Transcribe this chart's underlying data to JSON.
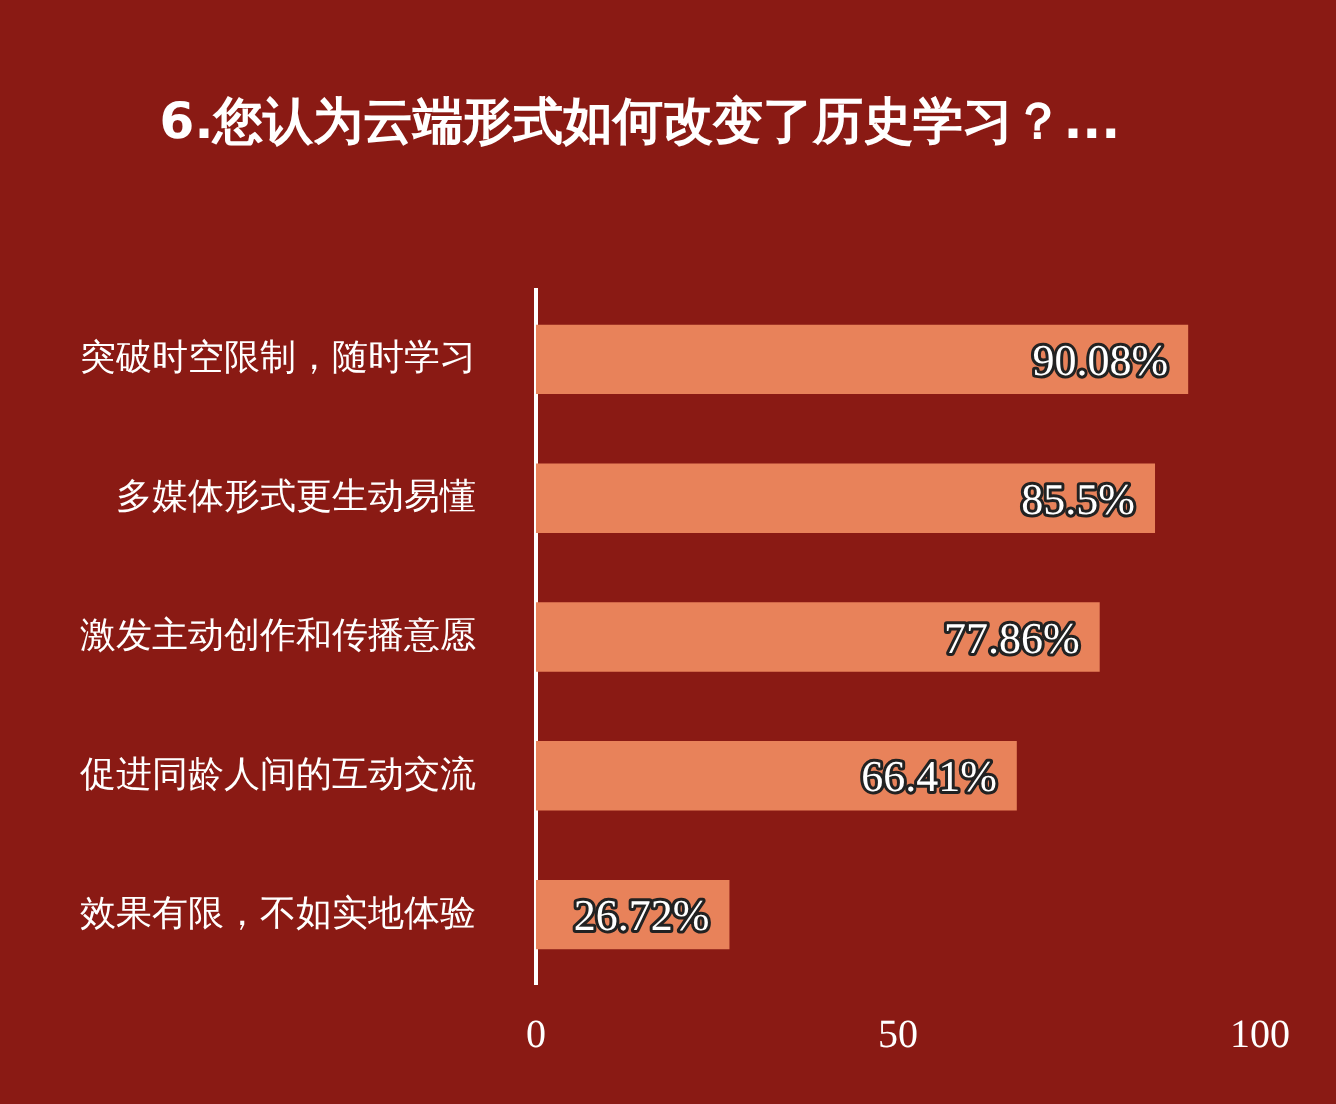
{
  "chart_data": {
    "type": "bar",
    "orientation": "horizontal",
    "title": "6.您认为云端形式如何改变了历史学习？...",
    "categories": [
      "突破时空限制，随时学习",
      "多媒体形式更生动易懂",
      "激发主动创作和传播意愿",
      "促进同龄人间的互动交流",
      "效果有限，不如实地体验"
    ],
    "series": [
      {
        "color": "#e8825a",
        "values": [
          90.08,
          85.5,
          77.86,
          66.41,
          26.72
        ]
      }
    ],
    "value_labels": [
      "90.08%",
      "85.5%",
      "77.86%",
      "66.41%",
      "26.72%"
    ],
    "xlim": [
      0,
      100
    ],
    "xticks": [
      0,
      50,
      100
    ],
    "grid": false,
    "legend": false
  }
}
